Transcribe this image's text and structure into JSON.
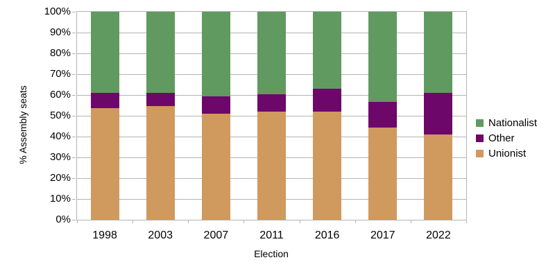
{
  "chart_data": {
    "type": "bar",
    "stacked": true,
    "title": "",
    "xlabel": "Election",
    "ylabel": "% Assembly seats",
    "categories": [
      "1998",
      "2003",
      "2007",
      "2011",
      "2016",
      "2017",
      "2022"
    ],
    "series": [
      {
        "name": "Unionist",
        "color": "#d0995e",
        "values": [
          53.7,
          54.6,
          50.9,
          51.9,
          51.9,
          44.4,
          41.1
        ]
      },
      {
        "name": "Other",
        "color": "#6d0769",
        "values": [
          7.4,
          6.5,
          8.3,
          8.3,
          11.1,
          12.2,
          20.0
        ]
      },
      {
        "name": "Nationalist",
        "color": "#609a60",
        "values": [
          38.9,
          38.9,
          40.7,
          39.8,
          37.0,
          43.3,
          38.9
        ]
      }
    ],
    "legend": [
      "Nationalist",
      "Other",
      "Unionist"
    ],
    "legend_position": "right",
    "ylim": [
      0,
      100
    ],
    "ytick_step": 10,
    "ytick_labels": [
      "0%",
      "10%",
      "20%",
      "30%",
      "40%",
      "50%",
      "60%",
      "70%",
      "80%",
      "90%",
      "100%"
    ],
    "grid": true
  },
  "colors": {
    "grid": "#b3b3b3",
    "axis": "#b3b3b3",
    "text": "#000000",
    "background": "#ffffff"
  }
}
